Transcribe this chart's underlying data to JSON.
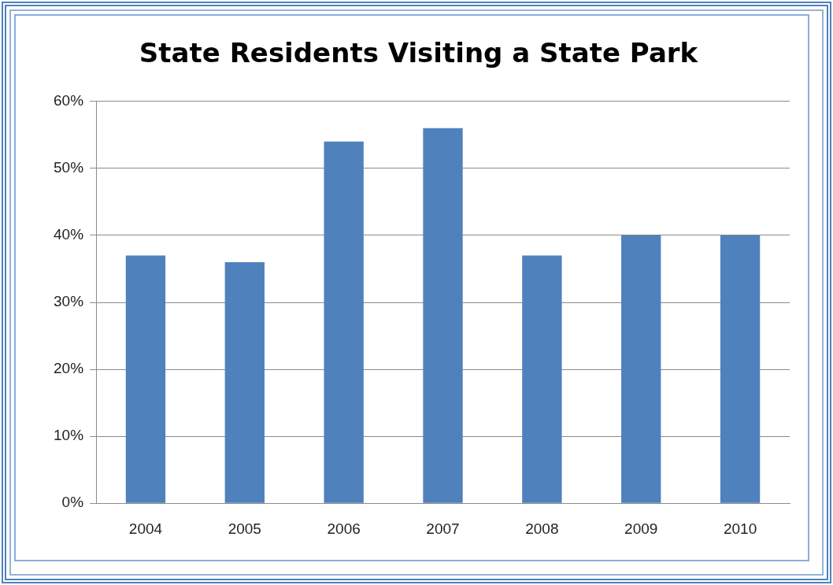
{
  "chart_data": {
    "type": "bar",
    "title": "State Residents Visiting a State Park",
    "categories": [
      "2004",
      "2005",
      "2006",
      "2007",
      "2008",
      "2009",
      "2010"
    ],
    "values": [
      37,
      36,
      54,
      56,
      37,
      40,
      40
    ],
    "color": "#4f81bd",
    "ylim": [
      0,
      60
    ],
    "yticks": [
      {
        "value": 0,
        "label": "0%"
      },
      {
        "value": 10,
        "label": "10%"
      },
      {
        "value": 20,
        "label": "20%"
      },
      {
        "value": 30,
        "label": "30%"
      },
      {
        "value": 40,
        "label": "40%"
      },
      {
        "value": 50,
        "label": "50%"
      },
      {
        "value": 60,
        "label": "60%"
      }
    ],
    "grid": "y",
    "legend": false
  }
}
